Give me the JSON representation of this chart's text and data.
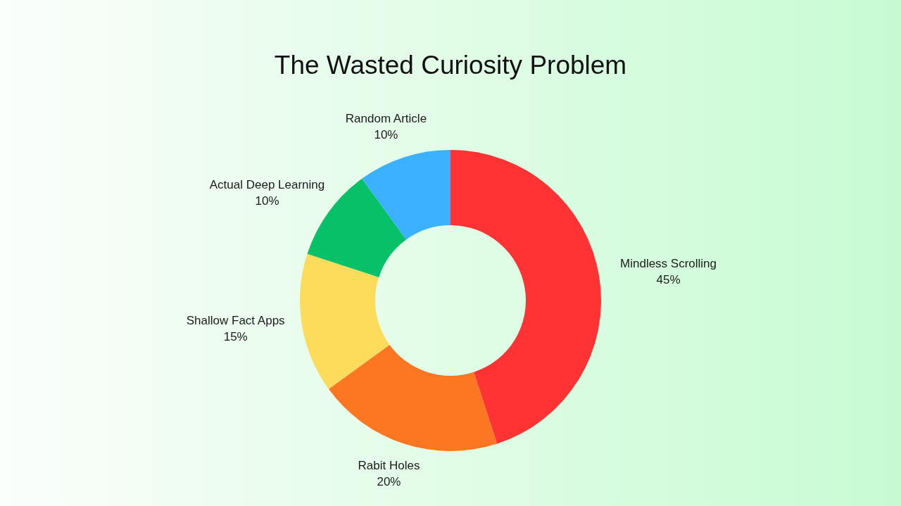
{
  "chart_data": {
    "type": "donut",
    "title": "The Wasted Curiosity Problem",
    "categories": [
      "Mindless Scrolling",
      "Rabit Holes",
      "Shallow Fact Apps",
      "Actual Deep Learning",
      "Random Article"
    ],
    "values": [
      45,
      20,
      15,
      10,
      10
    ],
    "colors": [
      "#ff3333",
      "#fd7722",
      "#fddc5c",
      "#06c167",
      "#3bb0ff"
    ],
    "value_labels": [
      "45%",
      "20%",
      "15%",
      "10%",
      "10%"
    ]
  }
}
